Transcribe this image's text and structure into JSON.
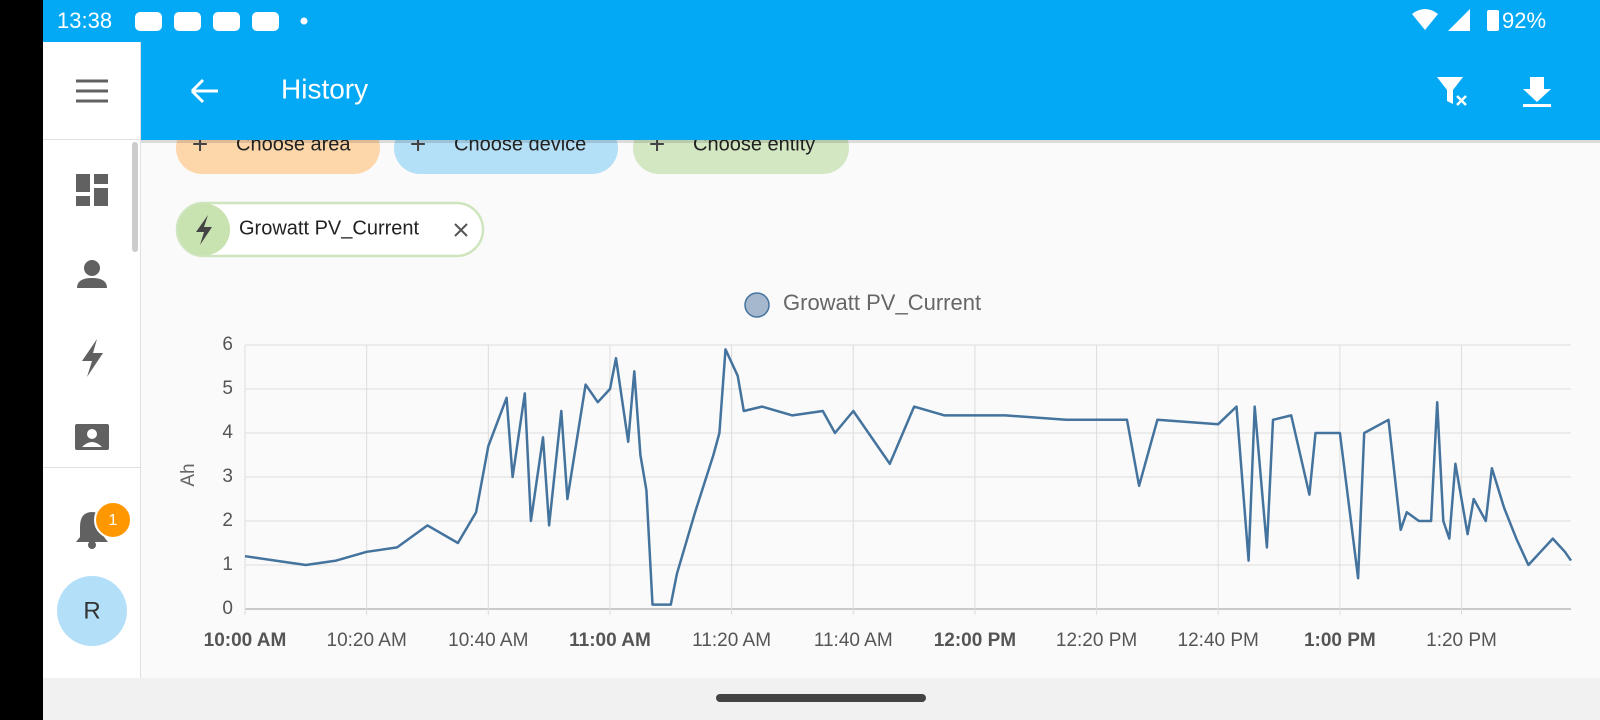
{
  "status_bar": {
    "time": "13:38",
    "battery": "92%"
  },
  "app_bar": {
    "title": "History"
  },
  "filters": {
    "area": "Choose area",
    "device": "Choose device",
    "entity": "Choose entity"
  },
  "selected_entity": "Growatt PV_Current",
  "sidebar": {
    "notification_count": "1",
    "avatar": "R"
  },
  "chart_data": {
    "type": "line",
    "y_label": "Ah",
    "x": [
      "10:00",
      "10:05",
      "10:10",
      "10:15",
      "10:20",
      "10:25",
      "10:30",
      "10:35",
      "10:38",
      "10:40",
      "10:43",
      "10:44",
      "10:46",
      "10:47",
      "10:49",
      "10:50",
      "10:52",
      "10:53",
      "10:56",
      "10:58",
      "11:00",
      "11:01",
      "11:03",
      "11:04",
      "11:05",
      "11:06",
      "11:07",
      "11:10",
      "11:11",
      "11:14",
      "11:17",
      "11:18",
      "11:19",
      "11:21",
      "11:22",
      "11:25",
      "11:30",
      "11:35",
      "11:37",
      "11:40",
      "11:46",
      "11:50",
      "11:55",
      "12:00",
      "12:05",
      "12:15",
      "12:25",
      "12:27",
      "12:30",
      "12:40",
      "12:43",
      "12:45",
      "12:46",
      "12:48",
      "12:49",
      "12:52",
      "12:55",
      "12:56",
      "13:00",
      "13:03",
      "13:04",
      "13:08",
      "13:10",
      "13:11",
      "13:13",
      "13:15",
      "13:16",
      "13:17",
      "13:18",
      "13:19",
      "13:21",
      "13:22",
      "13:24",
      "13:25",
      "13:27",
      "13:29",
      "13:31",
      "13:33",
      "13:35",
      "13:37",
      "13:38"
    ],
    "series": [
      {
        "name": "Growatt PV_Current",
        "color": "#44739e",
        "values": [
          1.2,
          1.1,
          1.0,
          1.1,
          1.3,
          1.4,
          1.9,
          1.5,
          2.2,
          3.7,
          4.8,
          3.0,
          4.9,
          2.0,
          3.9,
          1.9,
          4.5,
          2.5,
          5.1,
          4.7,
          5.0,
          5.7,
          3.8,
          5.4,
          3.5,
          2.7,
          0.1,
          0.1,
          0.8,
          2.2,
          3.5,
          4.0,
          5.9,
          5.3,
          4.5,
          4.6,
          4.4,
          4.5,
          4.0,
          4.5,
          3.3,
          4.6,
          4.4,
          4.4,
          4.4,
          4.3,
          4.3,
          2.8,
          4.3,
          4.2,
          4.6,
          1.1,
          4.6,
          1.4,
          4.3,
          4.4,
          2.6,
          4.0,
          4.0,
          0.7,
          4.0,
          4.3,
          1.8,
          2.2,
          2.0,
          2.0,
          4.7,
          2.0,
          1.6,
          3.3,
          1.7,
          2.5,
          2.0,
          3.2,
          2.3,
          1.6,
          1.0,
          1.3,
          1.6,
          1.3,
          1.1
        ]
      }
    ],
    "xlim": [
      "10:00",
      "13:38"
    ],
    "xticks": [
      {
        "value": "10:00",
        "label": "10:00 AM"
      },
      {
        "value": "10:20",
        "label": "10:20 AM"
      },
      {
        "value": "10:40",
        "label": "10:40 AM"
      },
      {
        "value": "11:00",
        "label": "11:00 AM"
      },
      {
        "value": "11:20",
        "label": "11:20 AM"
      },
      {
        "value": "11:40",
        "label": "11:40 AM"
      },
      {
        "value": "12:00",
        "label": "12:00 PM"
      },
      {
        "value": "12:20",
        "label": "12:20 PM"
      },
      {
        "value": "12:40",
        "label": "12:40 PM"
      },
      {
        "value": "13:00",
        "label": "1:00 PM"
      },
      {
        "value": "13:20",
        "label": "1:20 PM"
      }
    ],
    "ylim": [
      0,
      6
    ],
    "yticks": [
      0,
      1,
      2,
      3,
      4,
      5,
      6
    ],
    "grid": true
  }
}
